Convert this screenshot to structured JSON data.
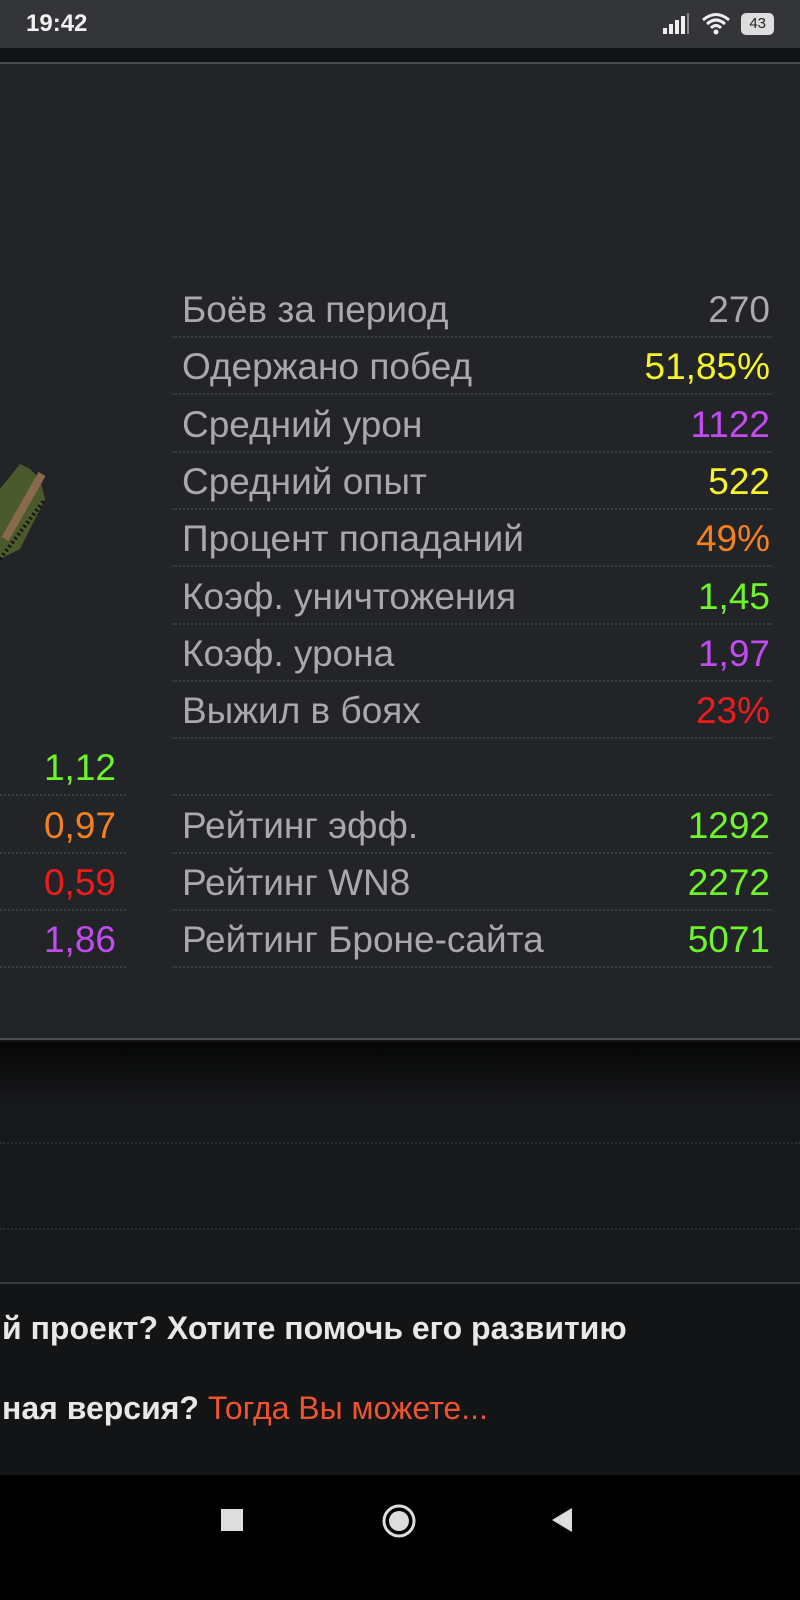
{
  "status_bar": {
    "time": "19:42",
    "battery": "43",
    "icons": [
      "signal-icon",
      "wifi-icon",
      "battery-icon"
    ]
  },
  "stats": [
    {
      "label": "Боёв за период",
      "value": "270",
      "color": "#a9a9ab"
    },
    {
      "label": "Одержано побед",
      "value": "51,85%",
      "color": "#f5f52a"
    },
    {
      "label": "Средний урон",
      "value": "1122",
      "color": "#c24bf2"
    },
    {
      "label": "Средний опыт",
      "value": "522",
      "color": "#f5f52a"
    },
    {
      "label": "Процент попаданий",
      "value": "49%",
      "color": "#f5801e"
    },
    {
      "label": "Коэф. уничтожения",
      "value": "1,45",
      "color": "#6ef52a"
    },
    {
      "label": "Коэф. урона",
      "value": "1,97",
      "color": "#c24bf2"
    },
    {
      "label": "Выжил в боях",
      "value": "23%",
      "color": "#ee1c1c"
    }
  ],
  "ratings": [
    {
      "label": "Рейтинг эфф.",
      "value": "1292",
      "color": "#6ef52a"
    },
    {
      "label": "Рейтинг WN8",
      "value": "2272",
      "color": "#6ef52a"
    },
    {
      "label": "Рейтинг Броне-сайта",
      "value": "5071",
      "color": "#6ef52a"
    }
  ],
  "left_values": [
    {
      "value": "1,12",
      "color": "#6ef52a"
    },
    {
      "value": "0,97",
      "color": "#f5801e"
    },
    {
      "value": "0,59",
      "color": "#ee1c1c"
    },
    {
      "value": "1,86",
      "color": "#c24bf2"
    }
  ],
  "promo": {
    "line1": "й проект? Хотите помочь его развитию",
    "line2": "ная версия?",
    "link": "Тогда Вы можете..."
  },
  "nav": {
    "icons": [
      "recents-icon",
      "home-icon",
      "back-icon"
    ]
  }
}
